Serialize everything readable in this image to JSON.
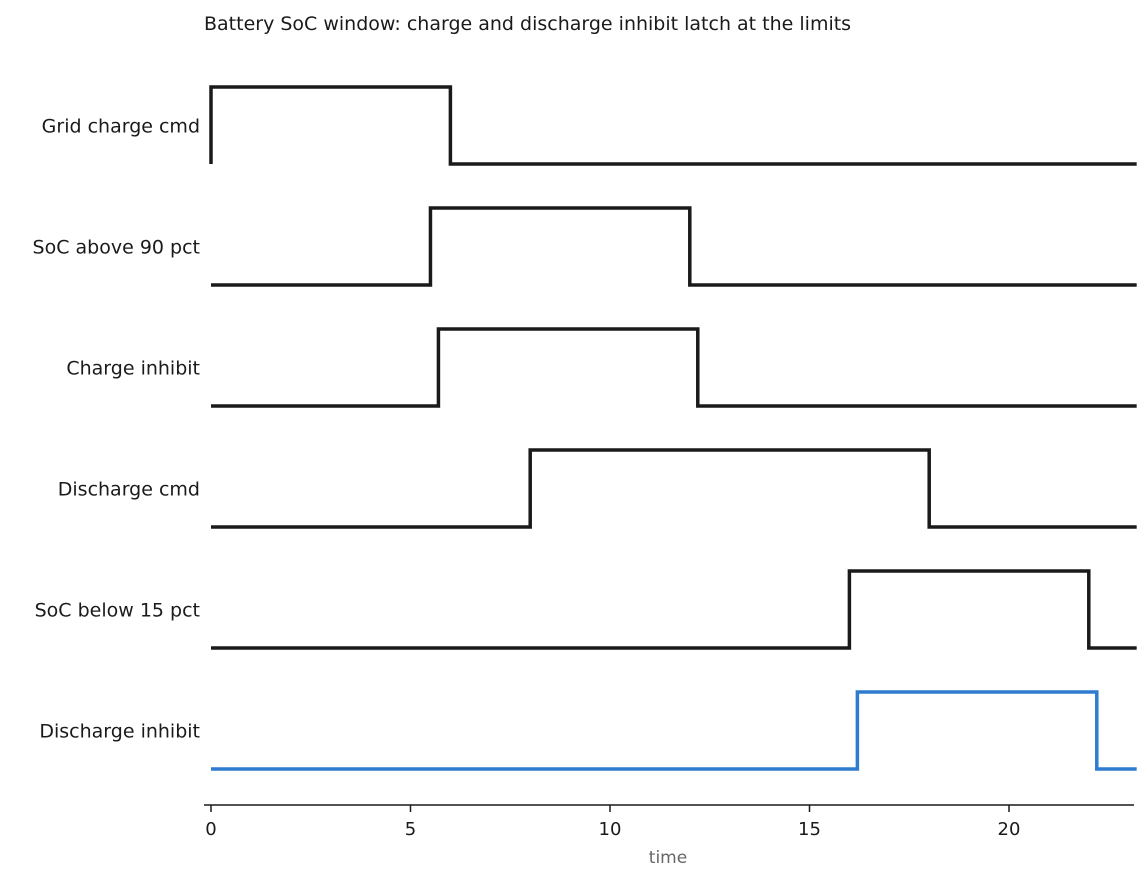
{
  "chart_data": {
    "type": "line",
    "subtype": "digital-timing-diagram",
    "title": "Battery SoC window: charge and discharge inhibit latch at the limits",
    "xlabel": "time",
    "xlim": [
      0,
      23.2
    ],
    "xticks": [
      0,
      5,
      10,
      15,
      20
    ],
    "tick_labels": [
      "0",
      "5",
      "10",
      "15",
      "20"
    ],
    "grid": false,
    "legend": "none",
    "default_color": "#1a1a1a",
    "highlight_color": "#2f7bd0",
    "series": [
      {
        "name": "Grid charge cmd",
        "color": "#1a1a1a",
        "transitions": [
          {
            "t": 0,
            "v": 1
          },
          {
            "t": 6.0,
            "v": 0
          }
        ],
        "end": 23.2
      },
      {
        "name": "SoC above 90 pct",
        "color": "#1a1a1a",
        "transitions": [
          {
            "t": 0,
            "v": 0
          },
          {
            "t": 5.5,
            "v": 1
          },
          {
            "t": 12.0,
            "v": 0
          }
        ],
        "end": 23.2
      },
      {
        "name": "Charge inhibit",
        "color": "#1a1a1a",
        "transitions": [
          {
            "t": 0,
            "v": 0
          },
          {
            "t": 5.7,
            "v": 1
          },
          {
            "t": 12.2,
            "v": 0
          }
        ],
        "end": 23.2
      },
      {
        "name": "Discharge cmd",
        "color": "#1a1a1a",
        "transitions": [
          {
            "t": 0,
            "v": 0
          },
          {
            "t": 8.0,
            "v": 1
          },
          {
            "t": 18.0,
            "v": 0
          }
        ],
        "end": 23.2
      },
      {
        "name": "SoC below 15 pct",
        "color": "#1a1a1a",
        "transitions": [
          {
            "t": 0,
            "v": 0
          },
          {
            "t": 16.0,
            "v": 1
          },
          {
            "t": 22.0,
            "v": 0
          }
        ],
        "end": 23.2
      },
      {
        "name": "Discharge inhibit",
        "color": "#2f7bd0",
        "transitions": [
          {
            "t": 0,
            "v": 0
          },
          {
            "t": 16.2,
            "v": 1
          },
          {
            "t": 22.2,
            "v": 0
          }
        ],
        "end": 23.2
      }
    ]
  }
}
